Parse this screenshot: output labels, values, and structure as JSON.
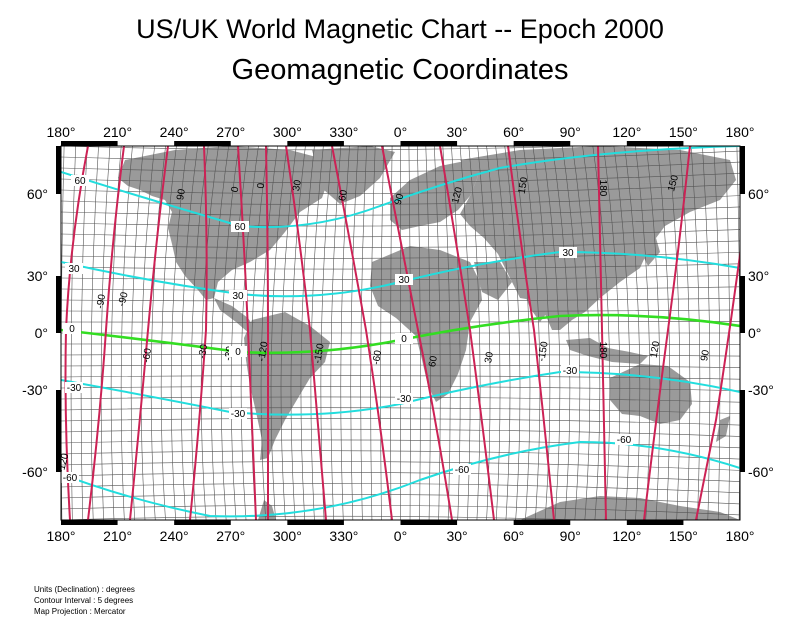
{
  "title": "US/UK World Magnetic Chart  --  Epoch 2000",
  "subtitle": "Geomagnetic Coordinates",
  "notes": {
    "units": "Units (Declination) : degrees",
    "interval": "Contour Interval : 5 degrees",
    "projection": "Map Projection : Mercator"
  },
  "axes": {
    "lon_labels": [
      "180°",
      "210°",
      "240°",
      "270°",
      "300°",
      "330°",
      "0°",
      "30°",
      "60°",
      "90°",
      "120°",
      "150°",
      "180°"
    ],
    "lat_labels": [
      "60°",
      "30°",
      "0°",
      "-30°",
      "-60°"
    ]
  },
  "colors": {
    "land": "#9a9a9a",
    "longitude_contours": "#cc2255",
    "latitude_contours": "#22dddd",
    "equator": "#33dd22",
    "grid": "#555555"
  },
  "contour_labels": {
    "longitude": [
      "60",
      "90",
      "-90",
      "-60",
      "-30",
      "0",
      "30",
      "60",
      "90",
      "120",
      "150",
      "180",
      "150",
      "120",
      "90",
      "60",
      "30",
      "0",
      "-30",
      "-60",
      "-90",
      "-120",
      "-150",
      "180",
      "-150",
      "-120"
    ],
    "latitude": [
      "60",
      "60",
      "30",
      "30",
      "30",
      "30",
      "0",
      "0",
      "0",
      "-30",
      "-30",
      "-30",
      "-30",
      "-60",
      "-60",
      "-60"
    ]
  }
}
